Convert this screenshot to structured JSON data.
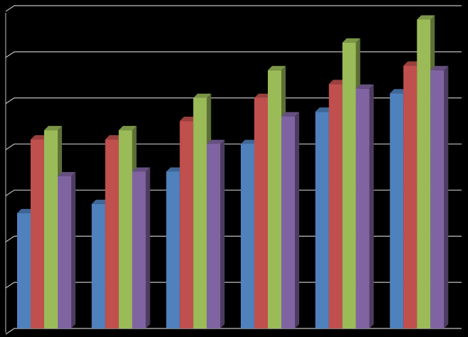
{
  "chart_data": {
    "type": "bar3d",
    "categories": [
      null,
      null,
      null,
      null,
      null,
      null
    ],
    "series": [
      {
        "color": "#4f81bd",
        "values": [
          2.5,
          2.7,
          3.4,
          4.0,
          4.7,
          5.1
        ]
      },
      {
        "color": "#c0504d",
        "values": [
          4.1,
          4.1,
          4.5,
          5.0,
          5.3,
          5.7
        ]
      },
      {
        "color": "#9bbb59",
        "values": [
          4.3,
          4.3,
          5.0,
          5.6,
          6.2,
          6.7
        ]
      },
      {
        "color": "#8064a2",
        "values": [
          3.3,
          3.4,
          4.0,
          4.6,
          5.2,
          5.6
        ]
      }
    ],
    "ylim": [
      0,
      7
    ],
    "yticks": [
      0,
      1,
      2,
      3,
      4,
      5,
      6,
      7
    ],
    "grid": true
  }
}
